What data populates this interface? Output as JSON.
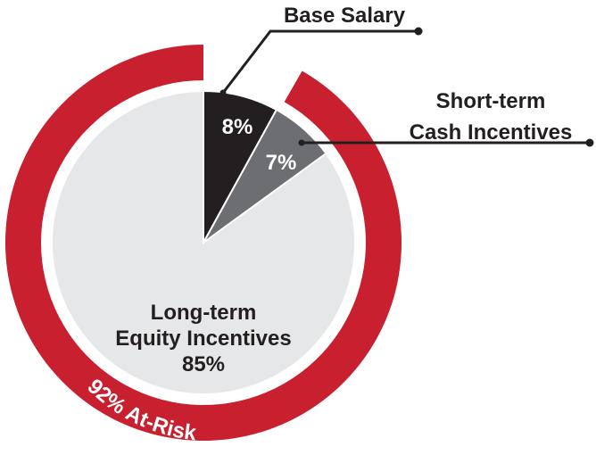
{
  "chart_data": {
    "type": "pie",
    "categories": [
      "Base Salary",
      "Short-term Cash Incentives",
      "Long-term Equity Incentives"
    ],
    "values": [
      8,
      7,
      85
    ],
    "value_labels": [
      "8%",
      "7%",
      "85%"
    ],
    "category_lines": [
      [
        "Base Salary"
      ],
      [
        "Short-term",
        "Cash Incentives"
      ],
      [
        "Long-term",
        "Equity Incentives"
      ]
    ],
    "colors": [
      "#231f20",
      "#6d6e71",
      "#e6e7e8"
    ],
    "outer_ring": {
      "label": "92% At-Risk",
      "value": 92,
      "color": "#c8202f"
    }
  }
}
